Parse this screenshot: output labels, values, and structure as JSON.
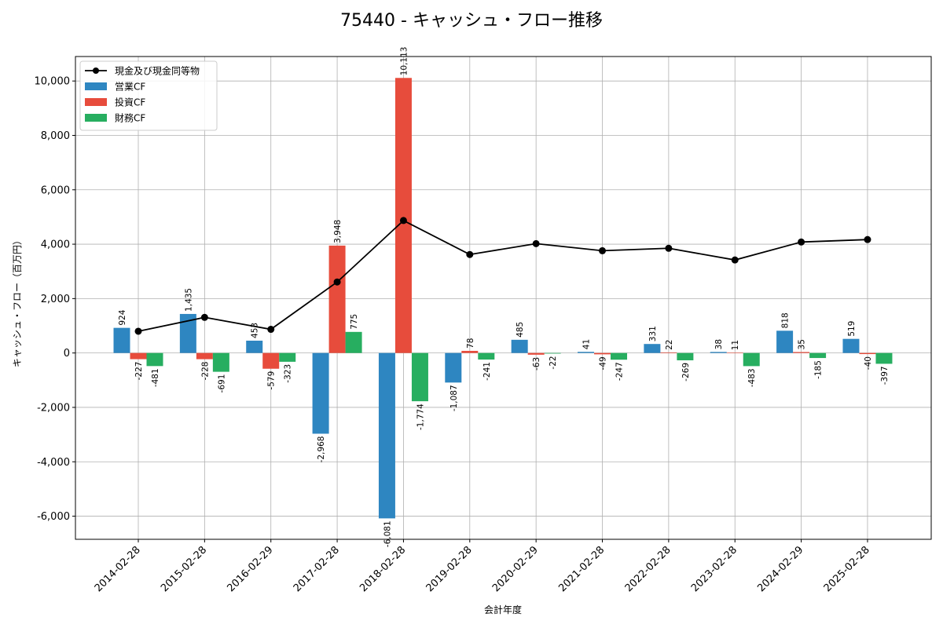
{
  "chart_data": {
    "type": "bar",
    "title": "75440 - キャッシュ・フロー推移",
    "xlabel": "会計年度",
    "ylabel": "キャッシュ・フロー（百万円）",
    "ylim": [
      -6850,
      10900
    ],
    "yticks": [
      -6000,
      -4000,
      -2000,
      0,
      2000,
      4000,
      6000,
      8000,
      10000
    ],
    "ytick_labels": [
      "-6,000",
      "-4,000",
      "-2,000",
      "0",
      "2,000",
      "4,000",
      "6,000",
      "8,000",
      "10,000"
    ],
    "grid": true,
    "legend_position": "top-left",
    "categories": [
      "2014-02-28",
      "2015-02-28",
      "2016-02-29",
      "2017-02-28",
      "2018-02-28",
      "2019-02-28",
      "2020-02-29",
      "2021-02-28",
      "2022-02-28",
      "2023-02-28",
      "2024-02-29",
      "2025-02-28"
    ],
    "series": [
      {
        "name": "営業CF",
        "kind": "bar",
        "color": "#2e86c1",
        "values": [
          924,
          1435,
          453,
          -2968,
          -6081,
          -1087,
          485,
          41,
          331,
          38,
          818,
          519
        ],
        "labels": [
          "924",
          "1,435",
          "453",
          "-2,968",
          "-6,081",
          "-1,087",
          "485",
          "41",
          "331",
          "38",
          "818",
          "519"
        ]
      },
      {
        "name": "投資CF",
        "kind": "bar",
        "color": "#e74c3c",
        "values": [
          -227,
          -228,
          -579,
          3948,
          10113,
          78,
          -63,
          -49,
          22,
          11,
          35,
          -40
        ],
        "labels": [
          "-227",
          "-228",
          "-579",
          "3,948",
          "10,113",
          "78",
          "-63",
          "-49",
          "22",
          "11",
          "35",
          "-40"
        ]
      },
      {
        "name": "財務CF",
        "kind": "bar",
        "color": "#27ae60",
        "values": [
          -481,
          -691,
          -323,
          775,
          -1774,
          -241,
          -22,
          -247,
          -269,
          -483,
          -185,
          -397
        ],
        "labels": [
          "-481",
          "-691",
          "-323",
          "775",
          "-1,774",
          "-241",
          "-22",
          "-247",
          "-269",
          "-483",
          "-185",
          "-397"
        ]
      },
      {
        "name": "現金及び現金同等物",
        "kind": "line",
        "color": "#000000",
        "values": [
          800,
          1310,
          870,
          2610,
          4870,
          3620,
          4020,
          3760,
          3850,
          3420,
          4080,
          4170
        ]
      }
    ]
  }
}
